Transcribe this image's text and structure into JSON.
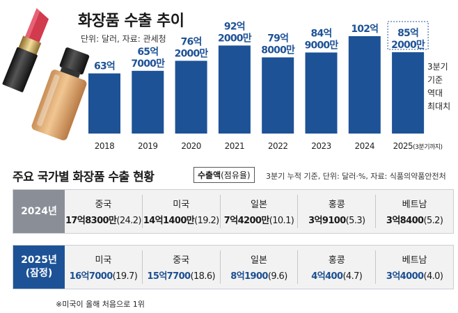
{
  "title": "화장품 수출 추이",
  "unit_source": "단위: 달러, 자료: 관세청",
  "chart_data": {
    "type": "bar",
    "title": "화장품 수출 추이",
    "categories": [
      "2018",
      "2019",
      "2020",
      "2021",
      "2022",
      "2023",
      "2024",
      "2025"
    ],
    "tick_labels": [
      "2018",
      "2019",
      "2020",
      "2021",
      "2022",
      "2023",
      "2024",
      "2025(3분기까지)"
    ],
    "values": [
      6300000000,
      6570000000,
      7620000000,
      9220000000,
      7980000000,
      8490000000,
      10200000000,
      8520000000
    ],
    "value_labels": [
      [
        "63억"
      ],
      [
        "65억",
        "7000만"
      ],
      [
        "76억",
        "2000만"
      ],
      [
        "92억",
        "2000만"
      ],
      [
        "79억",
        "8000만"
      ],
      [
        "84억",
        "9000만"
      ],
      [
        "102억"
      ],
      [
        "85억",
        "2000만"
      ]
    ],
    "bar_color": "#1d5296",
    "highlight_last": true,
    "annotation": [
      "3분기",
      "기준",
      "역대",
      "최대치"
    ]
  },
  "section2": {
    "title": "주요 국가별 화장품 수출 현황",
    "legend_main": "수출액",
    "legend_sub": "(점유율)",
    "note": "3분기 누적 기준, 단위: 달러·%, 자료: 식품의약품안전처"
  },
  "table": {
    "rows": [
      {
        "label": [
          "2024년"
        ],
        "cells": [
          {
            "country": "중국",
            "amount": "17억8300만",
            "share": "(24.2)"
          },
          {
            "country": "미국",
            "amount": "14억1400만",
            "share": "(19.2)"
          },
          {
            "country": "일본",
            "amount": "7억4200만",
            "share": "(10.1)"
          },
          {
            "country": "홍콩",
            "amount": "3억9100",
            "share": "(5.3)"
          },
          {
            "country": "베트남",
            "amount": "3억8400",
            "share": "(5.2)"
          }
        ]
      },
      {
        "label": [
          "2025년",
          "(잠정)"
        ],
        "cells": [
          {
            "country": "미국",
            "amount": "16억7000",
            "share": "(19.7)"
          },
          {
            "country": "중국",
            "amount": "15억7700",
            "share": "(18.6)"
          },
          {
            "country": "일본",
            "amount": "8억1900",
            "share": "(9.6)"
          },
          {
            "country": "홍콩",
            "amount": "4억400",
            "share": "(4.7)"
          },
          {
            "country": "베트남",
            "amount": "3억4000",
            "share": "(4.0)"
          }
        ]
      }
    ]
  },
  "footnote": "※미국이 올해 처음으로 1위"
}
